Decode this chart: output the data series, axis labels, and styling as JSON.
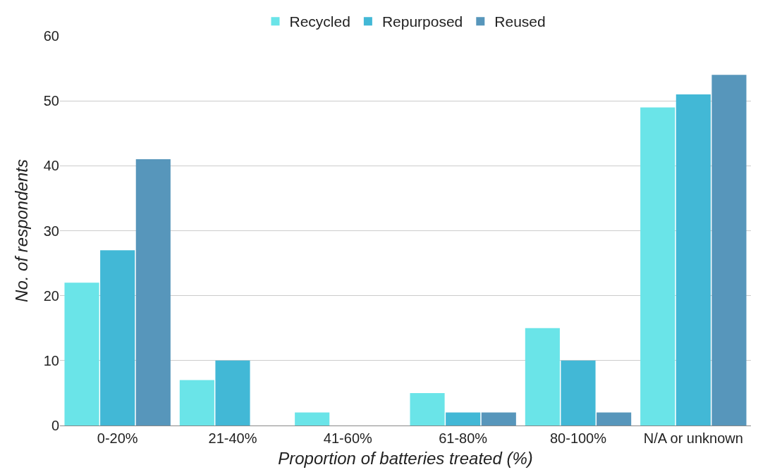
{
  "chart_data": {
    "type": "bar",
    "xlabel": "Proportion of batteries treated (%)",
    "ylabel": "No. of respondents",
    "categories": [
      "0-20%",
      "21-40%",
      "41-60%",
      "61-80%",
      "80-100%",
      "N/A or unknown"
    ],
    "series": [
      {
        "name": "Recycled",
        "color": "#6ae4e8",
        "values": [
          22,
          7,
          2,
          5,
          15,
          49
        ]
      },
      {
        "name": "Repurposed",
        "color": "#42b8d6",
        "values": [
          27,
          10,
          0,
          2,
          10,
          51
        ]
      },
      {
        "name": "Reused",
        "color": "#5796bb",
        "values": [
          41,
          0,
          0,
          2,
          2,
          54
        ]
      }
    ],
    "ylim": [
      0,
      60
    ],
    "yticks": [
      0,
      10,
      20,
      30,
      40,
      50,
      60
    ],
    "grid": "y",
    "legend": "top"
  }
}
